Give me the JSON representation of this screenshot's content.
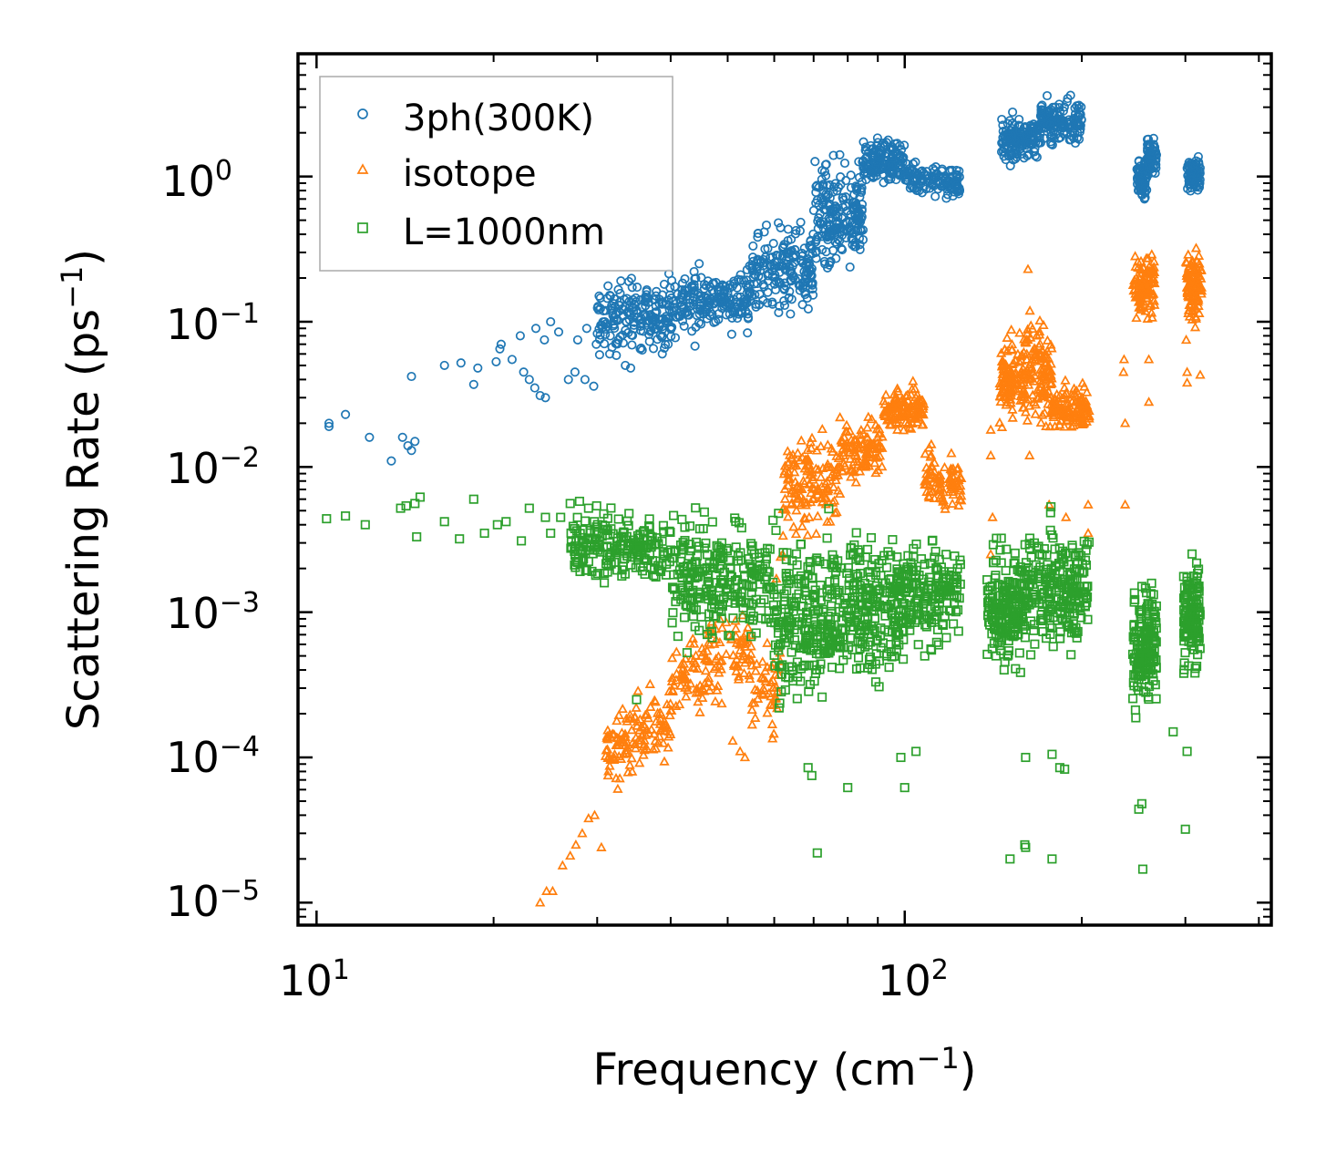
{
  "chart_data": {
    "type": "scatter",
    "xscale": "log",
    "yscale": "log",
    "xlim": [
      9.3,
      420
    ],
    "ylim": [
      7e-06,
      7
    ],
    "xlabel": {
      "text": "Frequency (cm",
      "exp": "−1",
      "close": ")"
    },
    "ylabel": {
      "text": "Scattering Rate (ps",
      "exp": "−1",
      "close": ")"
    },
    "xticks": [
      {
        "base": "10",
        "exp": "1",
        "value": 10
      },
      {
        "base": "10",
        "exp": "2",
        "value": 100
      }
    ],
    "yticks": [
      {
        "base": "10",
        "exp": "0",
        "value": 1
      },
      {
        "base": "10",
        "exp": "−1",
        "value": 0.1
      },
      {
        "base": "10",
        "exp": "−2",
        "value": 0.01
      },
      {
        "base": "10",
        "exp": "−3",
        "value": 0.001
      },
      {
        "base": "10",
        "exp": "−4",
        "value": 0.0001
      },
      {
        "base": "10",
        "exp": "−5",
        "value": 1e-05
      }
    ],
    "legend_position": "top-left",
    "series": [
      {
        "name": "3ph(300K)",
        "marker": "circle",
        "color": "#1f77b4",
        "points": [
          [
            10.5,
            0.02
          ],
          [
            10.5,
            0.019
          ],
          [
            11.2,
            0.023
          ],
          [
            12.3,
            0.016
          ],
          [
            13.4,
            0.011
          ],
          [
            14.0,
            0.016
          ],
          [
            14.3,
            0.014
          ],
          [
            14.5,
            0.013
          ],
          [
            14.7,
            0.015
          ],
          [
            14.5,
            0.042
          ],
          [
            16.5,
            0.05
          ],
          [
            17.6,
            0.052
          ],
          [
            18.5,
            0.037
          ],
          [
            18.8,
            0.048
          ],
          [
            20.2,
            0.053
          ],
          [
            20.5,
            0.065
          ],
          [
            20.6,
            0.07
          ],
          [
            22.2,
            0.08
          ],
          [
            21.5,
            0.055
          ],
          [
            22.5,
            0.045
          ],
          [
            23.0,
            0.04
          ],
          [
            23.5,
            0.035
          ],
          [
            24.0,
            0.031
          ],
          [
            24.5,
            0.03
          ],
          [
            23.6,
            0.09
          ],
          [
            24.4,
            0.075
          ],
          [
            25.0,
            0.1
          ],
          [
            25.8,
            0.085
          ],
          [
            26.8,
            0.04
          ],
          [
            27.5,
            0.045
          ],
          [
            28.6,
            0.04
          ],
          [
            29.6,
            0.036
          ],
          [
            27.8,
            0.075
          ],
          [
            28.8,
            0.09
          ],
          [
            29.9,
            0.07
          ],
          [
            30.9,
            0.1
          ],
          [
            31.5,
            0.06
          ],
          [
            32.6,
            0.075
          ],
          [
            33.5,
            0.05
          ],
          [
            34.2,
            0.048
          ],
          [
            35.5,
            0.065
          ],
          [
            38.7,
            0.06
          ],
          [
            39.6,
            0.07
          ],
          [
            44.0,
            0.068
          ]
        ],
        "dense_bands": [
          {
            "xmin": 30,
            "xmax": 40,
            "ymid": 0.11,
            "spread": 0.2,
            "trend": 0.6,
            "n": 180
          },
          {
            "xmin": 40,
            "xmax": 55,
            "ymid": 0.14,
            "spread": 0.18,
            "trend": 0.5,
            "n": 200
          },
          {
            "xmin": 55,
            "xmax": 70,
            "ymid": 0.22,
            "spread": 0.25,
            "trend": 0.6,
            "n": 180
          },
          {
            "xmin": 70,
            "xmax": 85,
            "ymid": 0.55,
            "spread": 0.3,
            "trend": 1.2,
            "n": 200
          },
          {
            "xmin": 85,
            "xmax": 100,
            "ymid": 1.3,
            "spread": 0.12,
            "trend": -0.1,
            "n": 150
          },
          {
            "xmin": 100,
            "xmax": 124,
            "ymid": 0.95,
            "spread": 0.1,
            "trend": -0.5,
            "n": 130
          },
          {
            "xmin": 146,
            "xmax": 170,
            "ymid": 1.8,
            "spread": 0.12,
            "trend": 0.4,
            "n": 150
          },
          {
            "xmin": 170,
            "xmax": 200,
            "ymid": 2.4,
            "spread": 0.12,
            "trend": -0.3,
            "n": 150
          },
          {
            "xmin": 248,
            "xmax": 258,
            "ymid": 1.0,
            "spread": 0.12,
            "trend": 0.4,
            "n": 70
          },
          {
            "xmin": 258,
            "xmax": 268,
            "ymid": 1.35,
            "spread": 0.12,
            "trend": 0.2,
            "n": 60
          },
          {
            "xmin": 302,
            "xmax": 318,
            "ymid": 1.0,
            "spread": 0.1,
            "trend": 0.0,
            "n": 80
          }
        ]
      },
      {
        "name": "isotope",
        "marker": "triangle",
        "color": "#ff7f0e",
        "points": [
          [
            24.0,
            1e-05
          ],
          [
            24.6,
            1.2e-05
          ],
          [
            25.2,
            1.2e-05
          ],
          [
            26.2,
            1.8e-05
          ],
          [
            27.0,
            2.1e-05
          ],
          [
            27.6,
            2.5e-05
          ],
          [
            28.3,
            3e-05
          ],
          [
            29.0,
            3.8e-05
          ],
          [
            29.7,
            4e-05
          ],
          [
            30.5,
            2.4e-05
          ],
          [
            31.3,
            7.5e-05
          ],
          [
            51.0,
            0.00013
          ],
          [
            52.5,
            0.00011
          ],
          [
            53.5,
            0.0001
          ],
          [
            60.5,
            0.0017
          ],
          [
            61.5,
            0.0024
          ],
          [
            62.0,
            0.0025
          ],
          [
            140.0,
            0.018
          ],
          [
            140.0,
            0.012
          ],
          [
            141.0,
            0.0045
          ],
          [
            140.0,
            0.0025
          ],
          [
            162.0,
            0.23
          ],
          [
            163.0,
            0.012
          ],
          [
            176.0,
            0.0055
          ],
          [
            188.0,
            0.0045
          ],
          [
            205.0,
            0.0055
          ],
          [
            205.0,
            0.0035
          ],
          [
            235.5,
            0.045
          ],
          [
            236.0,
            0.055
          ],
          [
            237.0,
            0.02
          ],
          [
            237.0,
            0.0055
          ],
          [
            260.0,
            0.055
          ],
          [
            260.0,
            0.028
          ],
          [
            301.0,
            0.075
          ],
          [
            302.0,
            0.045
          ],
          [
            302.0,
            0.038
          ],
          [
            318.0,
            0.043
          ]
        ],
        "dense_bands": [
          {
            "xmin": 31,
            "xmax": 40,
            "ymid": 0.00014,
            "spread": 0.2,
            "trend": 2.2,
            "n": 130
          },
          {
            "xmin": 40,
            "xmax": 55,
            "ymid": 0.00045,
            "spread": 0.25,
            "trend": 1.8,
            "n": 140
          },
          {
            "xmin": 55,
            "xmax": 62,
            "ymid": 0.0003,
            "spread": 0.25,
            "trend": 0.2,
            "n": 50
          },
          {
            "xmin": 62,
            "xmax": 78,
            "ymid": 0.008,
            "spread": 0.3,
            "trend": 1.2,
            "n": 150
          },
          {
            "xmin": 78,
            "xmax": 92,
            "ymid": 0.013,
            "spread": 0.15,
            "trend": 0.3,
            "n": 110
          },
          {
            "xmin": 92,
            "xmax": 108,
            "ymid": 0.025,
            "spread": 0.12,
            "trend": 0.2,
            "n": 120
          },
          {
            "xmin": 108,
            "xmax": 126,
            "ymid": 0.008,
            "spread": 0.18,
            "trend": -1.4,
            "n": 90
          },
          {
            "xmin": 145,
            "xmax": 160,
            "ymid": 0.04,
            "spread": 0.25,
            "trend": 0.7,
            "n": 120
          },
          {
            "xmin": 160,
            "xmax": 178,
            "ymid": 0.045,
            "spread": 0.3,
            "trend": -0.8,
            "n": 120
          },
          {
            "xmin": 178,
            "xmax": 206,
            "ymid": 0.025,
            "spread": 0.12,
            "trend": 0.0,
            "n": 120
          },
          {
            "xmin": 244,
            "xmax": 266,
            "ymid": 0.18,
            "spread": 0.18,
            "trend": 0.2,
            "n": 100
          },
          {
            "xmin": 300,
            "xmax": 320,
            "ymid": 0.18,
            "spread": 0.2,
            "trend": 0.3,
            "n": 100
          }
        ]
      },
      {
        "name": "L=1000nm",
        "marker": "square",
        "color": "#2ca02c",
        "points": [
          [
            10.4,
            0.0044
          ],
          [
            11.2,
            0.0046
          ],
          [
            12.1,
            0.004
          ],
          [
            13.9,
            0.0052
          ],
          [
            14.2,
            0.0054
          ],
          [
            14.7,
            0.0056
          ],
          [
            15.0,
            0.0062
          ],
          [
            14.8,
            0.0033
          ],
          [
            16.5,
            0.0042
          ],
          [
            17.5,
            0.0032
          ],
          [
            18.5,
            0.006
          ],
          [
            19.3,
            0.0035
          ],
          [
            20.3,
            0.004
          ],
          [
            21.0,
            0.0042
          ],
          [
            22.3,
            0.0031
          ],
          [
            23.0,
            0.0052
          ],
          [
            24.5,
            0.0045
          ],
          [
            25.0,
            0.0035
          ],
          [
            26.0,
            0.0045
          ],
          [
            27.0,
            0.0056
          ],
          [
            28.0,
            0.0058
          ],
          [
            29.0,
            0.0052
          ],
          [
            35.0,
            0.00025
          ],
          [
            68.5,
            8.5e-05
          ],
          [
            69.5,
            7.5e-05
          ],
          [
            71.0,
            2.2e-05
          ],
          [
            80.0,
            6.2e-05
          ],
          [
            100.0,
            6.2e-05
          ],
          [
            98.5,
            0.0001
          ],
          [
            104.5,
            0.00011
          ],
          [
            151.0,
            2e-05
          ],
          [
            160.0,
            2.5e-05
          ],
          [
            160.5,
            2.4e-05
          ],
          [
            160.5,
            0.0001
          ],
          [
            178.0,
            2e-05
          ],
          [
            178.0,
            0.000105
          ],
          [
            183.5,
            8.5e-05
          ],
          [
            187.0,
            8.3e-05
          ],
          [
            250.0,
            4.4e-05
          ],
          [
            253.0,
            4.8e-05
          ],
          [
            254.0,
            1.7e-05
          ],
          [
            286.0,
            0.00015
          ],
          [
            300.0,
            3.2e-05
          ],
          [
            302.0,
            0.00011
          ]
        ],
        "dense_bands": [
          {
            "xmin": 27,
            "xmax": 40,
            "ymid": 0.0028,
            "spread": 0.2,
            "trend": -0.3,
            "n": 200
          },
          {
            "xmin": 40,
            "xmax": 60,
            "ymid": 0.0017,
            "spread": 0.35,
            "trend": -0.4,
            "n": 260
          },
          {
            "xmin": 60,
            "xmax": 80,
            "ymid": 0.0009,
            "spread": 0.45,
            "trend": 0.0,
            "n": 260
          },
          {
            "xmin": 80,
            "xmax": 100,
            "ymid": 0.0011,
            "spread": 0.4,
            "trend": 0.2,
            "n": 220
          },
          {
            "xmin": 100,
            "xmax": 125,
            "ymid": 0.0013,
            "spread": 0.3,
            "trend": 0.0,
            "n": 170
          },
          {
            "xmin": 138,
            "xmax": 160,
            "ymid": 0.0011,
            "spread": 0.35,
            "trend": 0.3,
            "n": 190
          },
          {
            "xmin": 160,
            "xmax": 206,
            "ymid": 0.0015,
            "spread": 0.35,
            "trend": 0.0,
            "n": 230
          },
          {
            "xmin": 244,
            "xmax": 268,
            "ymid": 0.0006,
            "spread": 0.35,
            "trend": 0.0,
            "n": 160
          },
          {
            "xmin": 298,
            "xmax": 318,
            "ymid": 0.0009,
            "spread": 0.3,
            "trend": 0.0,
            "n": 130
          }
        ]
      }
    ]
  }
}
